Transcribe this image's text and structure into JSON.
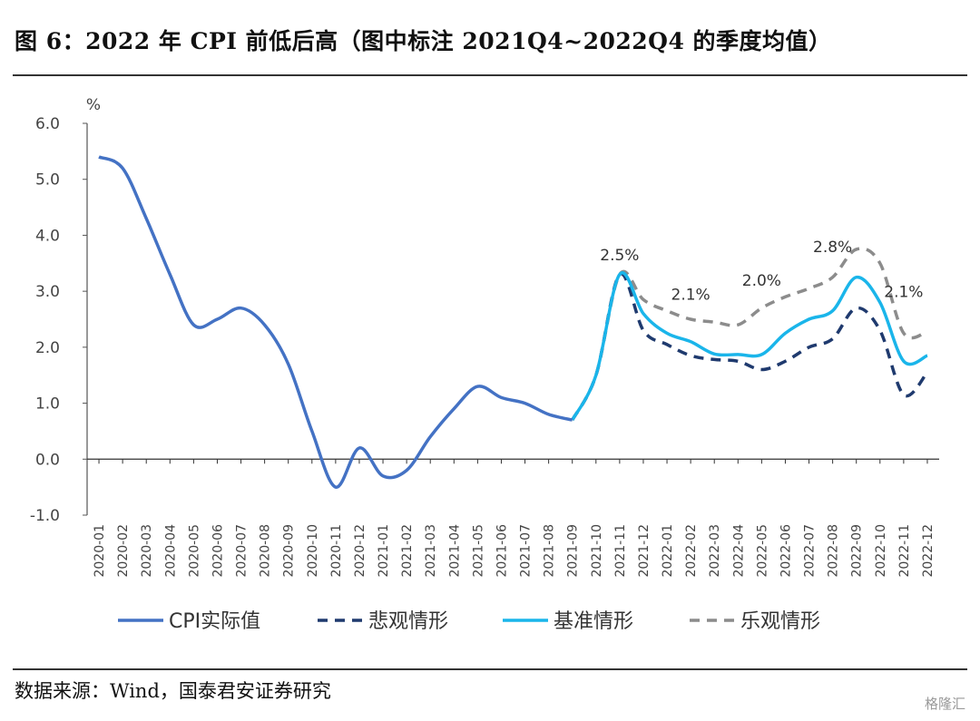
{
  "title": "图 6：2022 年 CPI 前低后高（图中标注 2021Q4~2022Q4 的季度均值）",
  "source": "数据来源：Wind，国泰君安证券研究",
  "watermark": "格隆汇",
  "chart_data": {
    "type": "line",
    "ylabel": "%",
    "ylim": [
      -1.0,
      6.0
    ],
    "yticks": [
      "6.0",
      "5.0",
      "4.0",
      "3.0",
      "2.0",
      "1.0",
      "0.0",
      "-1.0"
    ],
    "categories": [
      "2020-01",
      "2020-02",
      "2020-03",
      "2020-04",
      "2020-05",
      "2020-06",
      "2020-07",
      "2020-08",
      "2020-09",
      "2020-10",
      "2020-11",
      "2020-12",
      "2021-01",
      "2021-02",
      "2021-03",
      "2021-04",
      "2021-05",
      "2021-06",
      "2021-07",
      "2021-08",
      "2021-09",
      "2021-10",
      "2021-11",
      "2021-12",
      "2022-01",
      "2022-02",
      "2022-03",
      "2022-04",
      "2022-05",
      "2022-06",
      "2022-07",
      "2022-08",
      "2022-09",
      "2022-10",
      "2022-11",
      "2022-12"
    ],
    "series": [
      {
        "name": "CPI实际值",
        "color": "#4472C4",
        "style": "solid",
        "values": [
          5.4,
          5.2,
          4.3,
          3.3,
          2.4,
          2.5,
          2.7,
          2.4,
          1.7,
          0.5,
          -0.5,
          0.2,
          -0.3,
          -0.2,
          0.4,
          0.9,
          1.3,
          1.1,
          1.0,
          0.8,
          0.7,
          null,
          null,
          null,
          null,
          null,
          null,
          null,
          null,
          null,
          null,
          null,
          null,
          null,
          null,
          null
        ]
      },
      {
        "name": "悲观情形",
        "color": "#1F3A6E",
        "style": "dashed",
        "values": [
          null,
          null,
          null,
          null,
          null,
          null,
          null,
          null,
          null,
          null,
          null,
          null,
          null,
          null,
          null,
          null,
          null,
          null,
          null,
          null,
          0.7,
          1.5,
          3.3,
          2.3,
          2.05,
          1.85,
          1.78,
          1.75,
          1.6,
          1.75,
          2.0,
          2.15,
          2.7,
          2.3,
          1.15,
          1.55
        ]
      },
      {
        "name": "基准情形",
        "color": "#1AB5EA",
        "style": "solid",
        "values": [
          null,
          null,
          null,
          null,
          null,
          null,
          null,
          null,
          null,
          null,
          null,
          null,
          null,
          null,
          null,
          null,
          null,
          null,
          null,
          null,
          0.7,
          1.5,
          3.3,
          2.6,
          2.25,
          2.1,
          1.88,
          1.87,
          1.87,
          2.25,
          2.5,
          2.65,
          3.25,
          2.8,
          1.75,
          1.85
        ]
      },
      {
        "name": "乐观情形",
        "color": "#8C8C8C",
        "style": "dashed",
        "values": [
          null,
          null,
          null,
          null,
          null,
          null,
          null,
          null,
          null,
          null,
          null,
          null,
          null,
          null,
          null,
          null,
          null,
          null,
          null,
          null,
          0.7,
          1.5,
          3.3,
          2.85,
          2.65,
          2.5,
          2.45,
          2.4,
          2.7,
          2.9,
          3.05,
          3.25,
          3.75,
          3.5,
          2.25,
          2.28
        ]
      }
    ],
    "annotations": [
      {
        "text": "2.5%",
        "x": "2021-11",
        "y": 3.55
      },
      {
        "text": "2.1%",
        "x": "2022-02",
        "y": 2.85
      },
      {
        "text": "2.0%",
        "x": "2022-05",
        "y": 3.1
      },
      {
        "text": "2.8%",
        "x": "2022-08",
        "y": 3.7
      },
      {
        "text": "2.1%",
        "x": "2022-11",
        "y": 2.9
      }
    ],
    "legend_position": "bottom",
    "grid": false
  }
}
